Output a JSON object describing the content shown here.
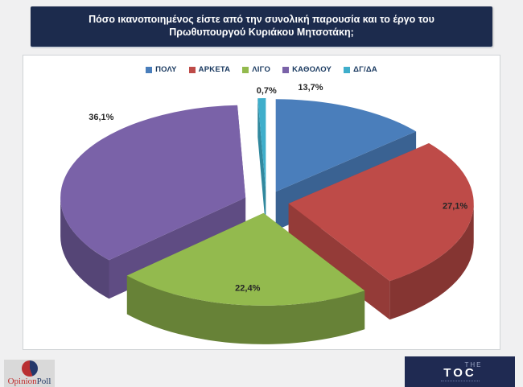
{
  "title": "Πόσο ικανοποιημένος είστε από την συνολική παρουσία και το έργο του Πρωθυπουργού Κυριάκου Μητσοτάκη;",
  "chart_data": {
    "type": "pie",
    "style": "3d-exploded",
    "start_angle_deg": 0,
    "direction": "clockwise",
    "legend_position": "top",
    "categories": [
      "ΠΟΛΥ",
      "ΑΡΚΕΤΑ",
      "ΛΙΓΟ",
      "ΚΑΘΟΛΟΥ",
      "ΔΓ/ΔΑ"
    ],
    "values": [
      13.7,
      27.1,
      22.4,
      36.1,
      0.7
    ],
    "labels": [
      "13,7%",
      "27,1%",
      "22,4%",
      "36,1%",
      "0,7%"
    ],
    "colors": [
      "#4A7EBB",
      "#BE4B48",
      "#93BA4E",
      "#7A62A8",
      "#3FAECB"
    ],
    "label_color": "#262626",
    "label_layout": [
      {
        "angle": 9.5,
        "r": 1.14
      },
      {
        "angle": 92,
        "r": 0.9
      },
      {
        "angle": 186,
        "r": 0.82
      },
      {
        "angle": 318,
        "r": 1.165
      },
      {
        "angle": 0.2,
        "r": 1.08
      }
    ]
  },
  "footer": {
    "opinionpoll": {
      "part1": "Opinion",
      "part2": "Poll"
    },
    "toc": {
      "the": "THE",
      "toc": "TOC"
    }
  }
}
